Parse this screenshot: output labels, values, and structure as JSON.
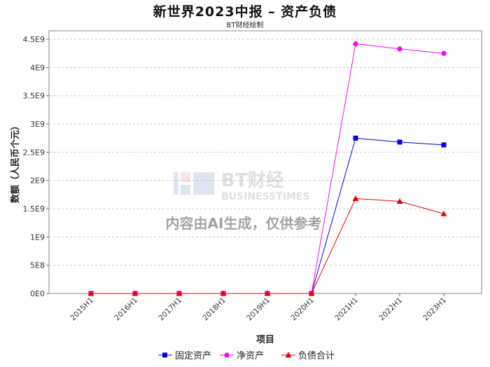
{
  "chart_data": {
    "type": "line",
    "title": "新世界2023中报 – 资产负债",
    "subtitle": "BT财经绘制",
    "xlabel": "项目",
    "ylabel": "数额（人民币个元）",
    "categories": [
      "2015H1",
      "2016H1",
      "2017H1",
      "2018H1",
      "2019H1",
      "2020H1",
      "2021H1",
      "2022H1",
      "2023H1"
    ],
    "y_ticks": [
      "0E0",
      "5E8",
      "1E9",
      "1.5E9",
      "2E9",
      "2.5E9",
      "3E9",
      "3.5E9",
      "4E9",
      "4.5E9"
    ],
    "ylim": [
      0,
      4650000000
    ],
    "grid": true,
    "legend_position": "bottom",
    "series": [
      {
        "name": "固定资产",
        "color": "#0000ee",
        "marker": "square",
        "values": [
          0,
          0,
          0,
          0,
          0,
          0,
          2750000000,
          2680000000,
          2630000000
        ]
      },
      {
        "name": "净资产",
        "color": "#ff00ff",
        "marker": "circle",
        "values": [
          0,
          0,
          0,
          0,
          0,
          0,
          4420000000,
          4330000000,
          4250000000
        ]
      },
      {
        "name": "负债合计",
        "color": "#ee0000",
        "marker": "triangle",
        "values": [
          0,
          0,
          0,
          0,
          0,
          0,
          1680000000,
          1630000000,
          1410000000
        ]
      }
    ],
    "watermark": {
      "brand": "BT财经",
      "brand_en": "BUSINESSTIMES",
      "notice": "内容由AI生成，仅供参考"
    }
  }
}
